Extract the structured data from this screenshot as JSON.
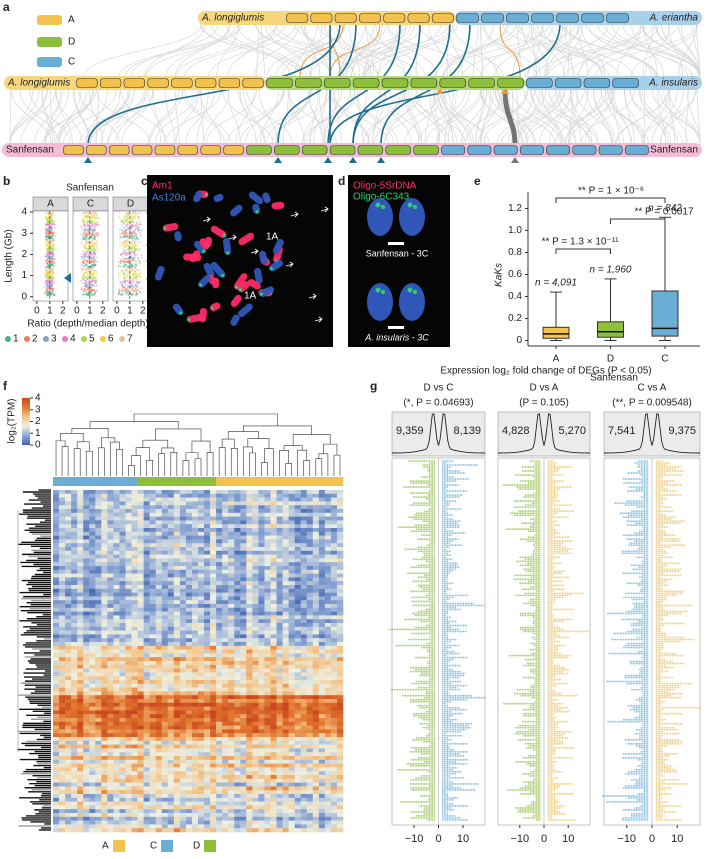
{
  "figure": {
    "panel_labels": [
      "a",
      "b",
      "c",
      "d",
      "e",
      "f",
      "g"
    ],
    "a": {
      "legend": [
        "A",
        "D",
        "C"
      ],
      "top_left": "A. longiglumis",
      "top_right": "A. eriantha",
      "middle_left": "A. longiglumis",
      "middle_right": "A. insularis",
      "bottom_left": "Sanfensan",
      "bottom_right": "Sanfensan"
    },
    "c": {
      "labels": [
        "Am1",
        "As120a"
      ],
      "markers": [
        "1A",
        "1A"
      ]
    },
    "d": {
      "labels": [
        "Oligo-5SrDNA",
        "Oligo-6C343"
      ],
      "captions": [
        "Sanfensan - 3C",
        "A. insularis - 3C"
      ]
    },
    "f": {
      "colorbar_title": "log₂(TPM)",
      "colorbar_ticks": [
        0,
        1,
        2,
        3,
        4
      ],
      "legend": [
        "A",
        "C",
        "D"
      ],
      "legend_colors": [
        "#f2c14e",
        "#6aaed6",
        "#8dbf3b"
      ]
    }
  },
  "chart_data": [
    {
      "type": "scatter",
      "title": "Sanfensan",
      "facets": [
        "A",
        "C",
        "D"
      ],
      "xlabel": "Ratio (depth/median depth)",
      "ylabel": "Length (Gb)",
      "xlim": [
        -0.3,
        2.4
      ],
      "ylim": [
        -0.2,
        4.05
      ],
      "xticks": [
        0,
        1,
        2
      ],
      "yticks": [
        0,
        1,
        2,
        3,
        4
      ],
      "legend": {
        "names": [
          "1",
          "2",
          "3",
          "4",
          "5",
          "6",
          "7"
        ],
        "colors": [
          "#4daf8b",
          "#f07c5a",
          "#8e9cc9",
          "#e37fc0",
          "#a6d854",
          "#f2d03b",
          "#e5c494"
        ]
      }
    },
    {
      "type": "box",
      "xlabel": "Sanfensan",
      "ylabel": "KaKs",
      "categories": [
        "A",
        "D",
        "C"
      ],
      "colors": [
        "#f2c14e",
        "#8dbf3b",
        "#6aaed6"
      ],
      "whisker_low": [
        0,
        0,
        0
      ],
      "q1": [
        0.02,
        0.03,
        0.04
      ],
      "median": [
        0.06,
        0.08,
        0.11
      ],
      "q3": [
        0.12,
        0.17,
        0.45
      ],
      "whisker_high": [
        0.44,
        0.56,
        1.12
      ],
      "n_labels": [
        "n = 4,091",
        "n = 1,960",
        "n = 842"
      ],
      "ylim": [
        -0.05,
        1.35
      ],
      "yticks": [
        0,
        0.2,
        0.4,
        0.6,
        0.8,
        {
          "value": 1,
          "label": "1.0"
        },
        1.2
      ],
      "annotations": [
        "** P = 1 × 10⁻⁶",
        "** P = 0.0017",
        "** P = 1.3 × 10⁻¹¹"
      ]
    },
    {
      "type": "scatter",
      "title": "Expression log₂ fold change of DEGs (P < 0.05)",
      "facets": [
        {
          "title": "D vs C",
          "subtitle": "(*, P = 0.04693)",
          "counts": [
            "9,359",
            "8,139"
          ],
          "colors": [
            "#8dbf3b",
            "#6aaed6"
          ]
        },
        {
          "title": "D vs A",
          "subtitle": "(P = 0.105)",
          "counts": [
            "4,828",
            "5,270"
          ],
          "colors": [
            "#8dbf3b",
            "#f2c14e"
          ]
        },
        {
          "title": "C vs A",
          "subtitle": "(**, P = 0.009548)",
          "counts": [
            "7,541",
            "9,375"
          ],
          "colors": [
            "#6aaed6",
            "#f2c14e"
          ]
        }
      ],
      "xlim": [
        -19,
        19
      ],
      "xticks": [
        {
          "value": -10,
          "label": "−10"
        },
        0,
        10
      ]
    }
  ]
}
